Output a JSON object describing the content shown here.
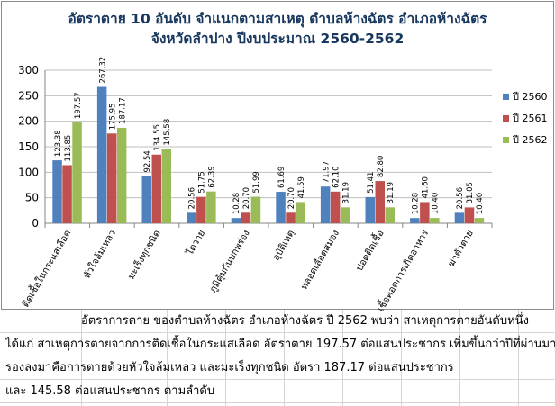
{
  "chart_data": {
    "type": "bar",
    "title": "อัตราตาย 10 อันดับ จำแนกตามสาเหตุ ตำบลห้างฉัตร อำเภอห้างฉัตร",
    "subtitle": "จังหวัดลำปาง ปีงบประมาณ 2560-2562",
    "xlabel": "",
    "ylabel": "",
    "ylim": [
      0,
      300
    ],
    "yticks": [
      0,
      50,
      100,
      150,
      200,
      250,
      300
    ],
    "grid": true,
    "legend": "right",
    "categories": [
      "ติดเชื้อในกระแสเลือด",
      "หัวใจล้มเหลว",
      "มะเร็งทุกชนิด",
      "ไตวาย",
      "ภูมิคุ้มกันบกพร่อง",
      "อุบัติเหตุ",
      "หลอดเลือดสมอง",
      "ปอดติดเชื้อ",
      "เชื้อคอดการเกิดอาหาร",
      "ฆ่าตัวตาย"
    ],
    "series": [
      {
        "name": "ปี 2560",
        "color": "#4f81bd",
        "values": [
          123.38,
          267.32,
          92.54,
          20.56,
          10.28,
          61.69,
          71.97,
          51.41,
          10.28,
          20.56
        ]
      },
      {
        "name": "ปี 2561",
        "color": "#c0504d",
        "values": [
          113.85,
          175.95,
          134.55,
          51.75,
          20.7,
          20.7,
          62.1,
          82.8,
          41.6,
          31.05
        ]
      },
      {
        "name": "ปี 2562",
        "color": "#9bbb59",
        "values": [
          197.57,
          187.17,
          145.58,
          62.39,
          51.99,
          41.59,
          31.19,
          31.19,
          10.4,
          10.4
        ]
      }
    ],
    "value_labels": [
      [
        "123.38",
        "267.32",
        "92.54",
        "20.56",
        "10.28",
        "61.69",
        "71.97",
        "51.41",
        "10.28",
        "20.56"
      ],
      [
        "113.85",
        "175.95",
        "134.55",
        "51.75",
        "20.70",
        "20.70",
        "62.10",
        "82.80",
        "41.60",
        "31.05"
      ],
      [
        "197.57",
        "187.17",
        "145.58",
        "62.39",
        "51.99",
        "41.59",
        "31.19",
        "31.19",
        "10.40",
        "10.40"
      ]
    ]
  },
  "summary": {
    "lines": [
      "อัตราการตาย ของตำบลห้างฉัตร อำเภอห้างฉัตร ปี 2562 พบว่า  สาเหตุการตายอันดับหนึ่ง",
      "ได้แก่ สาเหตุการตายจากการติดเชื้อในกระแสเลือด อัตราตาย 197.57 ต่อแสนประชากร  เพิ่มขึ้นกว่าปีที่ผ่านมา",
      "รองลงมาคือการตายด้วยหัวใจล้มเหลว และมะเร็งทุกชนิด อัตรา 187.17 ต่อแสนประชากร",
      "และ 145.58 ต่อแสนประชากร ตามลำดับ"
    ]
  }
}
